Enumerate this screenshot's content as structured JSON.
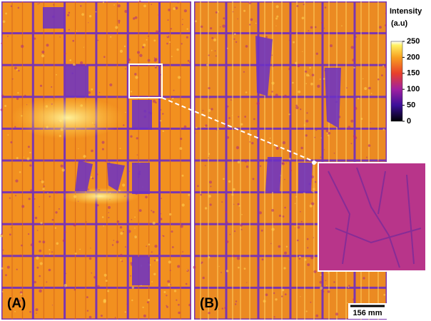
{
  "colorbar": {
    "title": "Intensity",
    "unit": "(a.u)",
    "lim": [
      0,
      250
    ],
    "ticks": [
      250,
      200,
      150,
      100,
      50,
      0
    ]
  },
  "panels": [
    {
      "label": "(A)"
    },
    {
      "label": "(B)"
    }
  ],
  "scale_bar": {
    "label": "156 mm"
  }
}
